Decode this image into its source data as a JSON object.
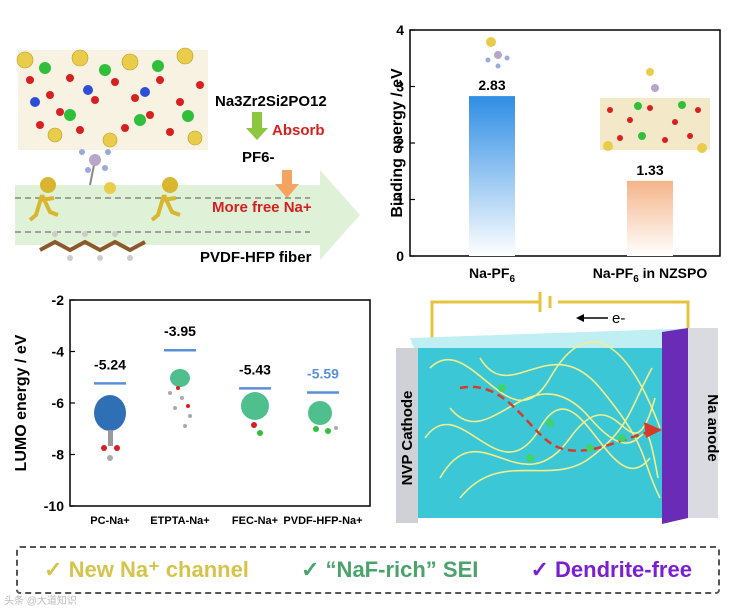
{
  "panel_a": {
    "compound": "Na3Zr2Si2PO12",
    "absorb": "Absorb",
    "anion": "PF6-",
    "free_na": "More free Na+",
    "fiber": "PVDF-HFP fiber"
  },
  "chart_data": [
    {
      "type": "bar",
      "ylabel": "Binding energy / eV",
      "ylim": [
        0,
        4
      ],
      "yticks": [
        0,
        1,
        2,
        3,
        4
      ],
      "categories": [
        "Na-PF6",
        "Na-PF6 in NZSPO"
      ],
      "values": [
        2.83,
        1.33
      ],
      "value_labels": [
        "2.83",
        "1.33"
      ],
      "colors": [
        "#2f8de4",
        "#f5b48a"
      ]
    },
    {
      "type": "scatter",
      "ylabel": "LUMO energy / eV",
      "ylim": [
        -10,
        -2
      ],
      "yticks": [
        -10,
        -8,
        -6,
        -4,
        -2
      ],
      "categories": [
        "PC-Na+",
        "ETPTA-Na+",
        "FEC-Na+",
        "PVDF-HFP-Na+"
      ],
      "values": [
        -5.24,
        -3.95,
        -5.43,
        -5.59
      ],
      "value_labels": [
        "-5.24",
        "-3.95",
        "-5.43",
        "-5.59"
      ],
      "label_colors": [
        "#000000",
        "#000000",
        "#000000",
        "#5b8fd6"
      ]
    }
  ],
  "panel_d": {
    "cathode": "NVP Cathode",
    "anode": "Na anode",
    "electron": "e-"
  },
  "footer": {
    "item1": "✓ New Na⁺ channel",
    "item2": "✓ “NaF-rich” SEI",
    "item3": "✓ Dendrite-free"
  },
  "watermark": "头条 @大道知识"
}
